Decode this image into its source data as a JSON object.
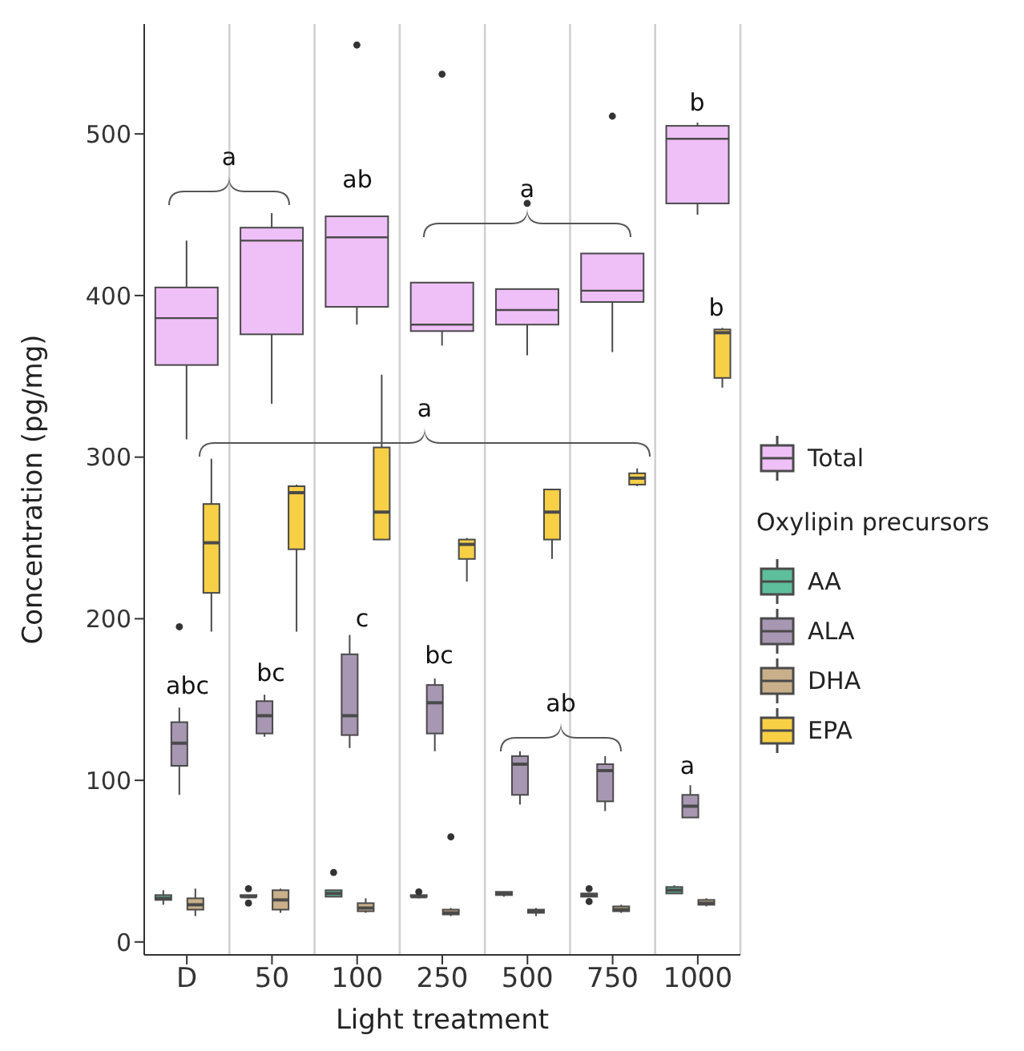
{
  "chart_data": {
    "type": "box",
    "xlabel": "Light treatment",
    "ylabel": "Concentration (pg/mg)",
    "legend_title": "Oxylipin precursors",
    "legend": "right",
    "grid": "x",
    "categories": [
      "D",
      "50",
      "100",
      "250",
      "500",
      "750",
      "1000"
    ],
    "ylim": [
      -8,
      568
    ],
    "yticks": [
      0,
      100,
      200,
      300,
      400,
      500
    ],
    "series": [
      {
        "name": "Total",
        "color": "#efbff7",
        "boxes": [
          {
            "low": 311,
            "q1": 357,
            "median": 386,
            "q3": 405,
            "high": 434
          },
          {
            "low": 333,
            "q1": 376,
            "median": 434,
            "q3": 442,
            "high": 451
          },
          {
            "low": 382,
            "q1": 393,
            "median": 436,
            "q3": 449,
            "high": 449,
            "outliers": [
              555
            ]
          },
          {
            "low": 369,
            "q1": 378,
            "median": 382,
            "q3": 408,
            "high": 408,
            "outliers": [
              537
            ]
          },
          {
            "low": 363,
            "q1": 382,
            "median": 391,
            "q3": 404,
            "high": 404,
            "outliers": [
              457
            ]
          },
          {
            "low": 365,
            "q1": 396,
            "median": 403,
            "q3": 426,
            "high": 426,
            "outliers": [
              511
            ]
          },
          {
            "low": 450,
            "q1": 457,
            "median": 497,
            "q3": 505,
            "high": 507
          }
        ]
      },
      {
        "name": "AA",
        "color": "#5dbf9b",
        "boxes": [
          {
            "low": 23,
            "q1": 26,
            "median": 27,
            "q3": 29,
            "high": 32
          },
          {
            "low": 27,
            "q1": 28,
            "median": 28,
            "q3": 29,
            "high": 29,
            "outliers": [
              33,
              24
            ]
          },
          {
            "low": 28,
            "q1": 28,
            "median": 30,
            "q3": 32,
            "high": 32,
            "outliers": [
              43
            ]
          },
          {
            "low": 27,
            "q1": 28,
            "median": 28,
            "q3": 29,
            "high": 29,
            "outliers": [
              31
            ]
          },
          {
            "low": 28,
            "q1": 29,
            "median": 30,
            "q3": 31,
            "high": 31
          },
          {
            "low": 28,
            "q1": 28,
            "median": 29,
            "q3": 30,
            "high": 30,
            "outliers": [
              33,
              25
            ]
          },
          {
            "low": 30,
            "q1": 30,
            "median": 32,
            "q3": 34,
            "high": 35
          }
        ]
      },
      {
        "name": "ALA",
        "color": "#a897b3",
        "boxes": [
          {
            "low": 91,
            "q1": 109,
            "median": 123,
            "q3": 136,
            "high": 145,
            "outliers": [
              195
            ]
          },
          {
            "low": 127,
            "q1": 129,
            "median": 140,
            "q3": 149,
            "high": 153
          },
          {
            "low": 120,
            "q1": 128,
            "median": 140,
            "q3": 178,
            "high": 190
          },
          {
            "low": 118,
            "q1": 129,
            "median": 148,
            "q3": 159,
            "high": 163
          },
          {
            "low": 85,
            "q1": 91,
            "median": 110,
            "q3": 115,
            "high": 118
          },
          {
            "low": 81,
            "q1": 87,
            "median": 106,
            "q3": 110,
            "high": 115
          },
          {
            "low": 77,
            "q1": 77,
            "median": 84,
            "q3": 91,
            "high": 97
          }
        ]
      },
      {
        "name": "DHA",
        "color": "#c9b08a",
        "boxes": [
          {
            "low": 16,
            "q1": 20,
            "median": 23,
            "q3": 27,
            "high": 33
          },
          {
            "low": 18,
            "q1": 20,
            "median": 26,
            "q3": 32,
            "high": 33
          },
          {
            "low": 18,
            "q1": 19,
            "median": 21,
            "q3": 24,
            "high": 27
          },
          {
            "low": 16,
            "q1": 17,
            "median": 18,
            "q3": 20,
            "high": 21,
            "outliers": [
              65
            ]
          },
          {
            "low": 16,
            "q1": 18,
            "median": 19,
            "q3": 20,
            "high": 21
          },
          {
            "low": 18,
            "q1": 19,
            "median": 20,
            "q3": 22,
            "high": 23
          },
          {
            "low": 22,
            "q1": 23,
            "median": 24,
            "q3": 26,
            "high": 27
          }
        ]
      },
      {
        "name": "EPA",
        "color": "#f7d046",
        "boxes": [
          {
            "low": 192,
            "q1": 216,
            "median": 247,
            "q3": 271,
            "high": 299
          },
          {
            "low": 192,
            "q1": 243,
            "median": 278,
            "q3": 282,
            "high": 283
          },
          {
            "low": 249,
            "q1": 249,
            "median": 266,
            "q3": 306,
            "high": 351
          },
          {
            "low": 223,
            "q1": 237,
            "median": 246,
            "q3": 249,
            "high": 250
          },
          {
            "low": 237,
            "q1": 249,
            "median": 266,
            "q3": 280,
            "high": 280
          },
          {
            "low": 282,
            "q1": 283,
            "median": 287,
            "q3": 290,
            "high": 293
          },
          {
            "low": 343,
            "q1": 349,
            "median": 377,
            "q3": 379,
            "high": 380
          }
        ]
      }
    ],
    "annotations": [
      "a",
      "ab",
      "a",
      "b",
      "a",
      "b",
      "abc",
      "bc",
      "c",
      "bc",
      "ab",
      "a"
    ]
  }
}
